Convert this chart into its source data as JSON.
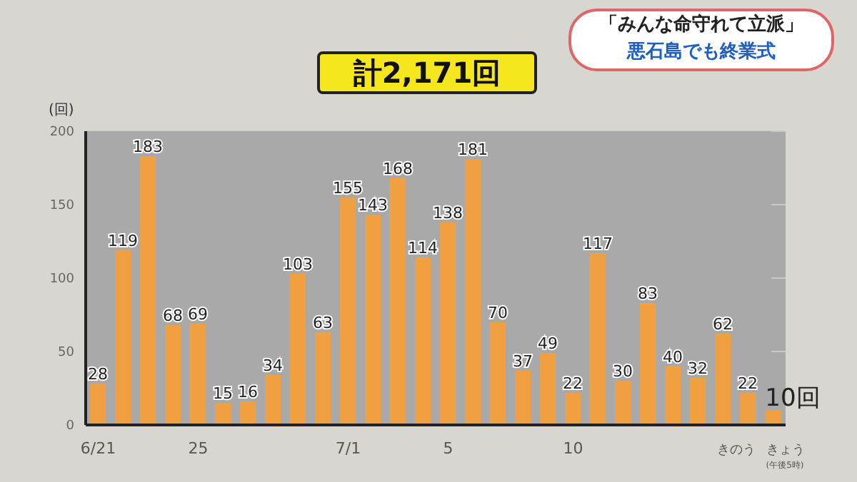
{
  "chart_data": {
    "type": "bar",
    "title": "計2,171回",
    "ylabel": "(回)",
    "annotations": [
      "「みんな命守れて立派」",
      "悪石島でも終業式"
    ],
    "categories": [
      "6/21",
      null,
      null,
      null,
      "25",
      null,
      null,
      null,
      null,
      null,
      "7/1",
      null,
      null,
      null,
      "5",
      null,
      null,
      null,
      null,
      "10",
      null,
      null,
      null,
      null,
      null,
      null,
      "きのう",
      "きょう\n(午後5時)"
    ],
    "values": [
      28,
      119,
      183,
      68,
      69,
      15,
      16,
      34,
      103,
      63,
      155,
      143,
      168,
      114,
      138,
      181,
      70,
      37,
      49,
      22,
      117,
      30,
      83,
      40,
      32,
      62,
      22,
      10
    ],
    "value_labels": [
      "28",
      "119",
      "183",
      "68",
      "69",
      "15",
      "16",
      "34",
      "103",
      "63",
      "155",
      "143",
      "168",
      "114",
      "138",
      "181",
      "70",
      "37",
      "49",
      "22",
      "117",
      "30",
      "83",
      "40",
      "32",
      "62",
      "22",
      "10回"
    ],
    "color": "#f0a040",
    "ylim": [
      0,
      200
    ],
    "yticks": [
      0,
      50,
      100,
      150,
      200
    ],
    "grid": "y"
  }
}
